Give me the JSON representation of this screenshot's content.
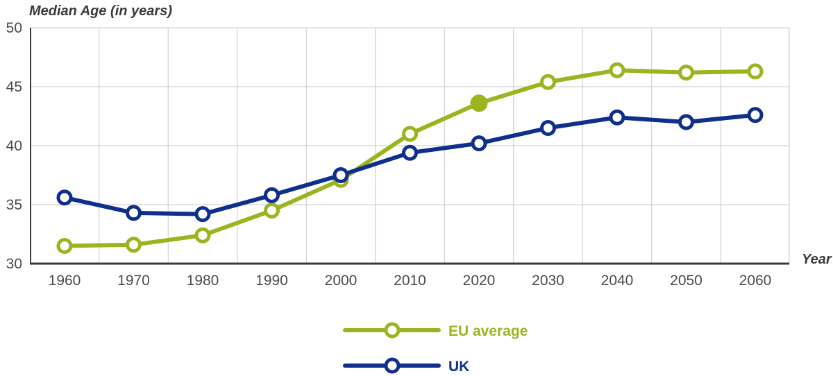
{
  "chart_data": {
    "type": "line",
    "ylabel": "Median Age (in years)",
    "xlabel": "Year",
    "x": [
      1960,
      1970,
      1980,
      1990,
      2000,
      2010,
      2020,
      2030,
      2040,
      2050,
      2060
    ],
    "xticks": [
      "1960",
      "1970",
      "1980",
      "1990",
      "2000",
      "2010",
      "2020",
      "2030",
      "2040",
      "2050",
      "2060"
    ],
    "yticks": [
      "30",
      "35",
      "40",
      "45",
      "50"
    ],
    "ylim": [
      30,
      50
    ],
    "grid": true,
    "legend_position": "bottom",
    "series": [
      {
        "name": "EU average",
        "color": "#9ab51f",
        "values": [
          31.5,
          31.6,
          32.4,
          34.5,
          37.1,
          41.0,
          43.6,
          45.4,
          46.4,
          46.2,
          46.3
        ],
        "highlighted_index": 6
      },
      {
        "name": "UK",
        "color": "#0e2f8c",
        "values": [
          35.6,
          34.3,
          34.2,
          35.8,
          37.5,
          39.4,
          40.2,
          41.5,
          42.4,
          42.0,
          42.6
        ]
      }
    ]
  }
}
